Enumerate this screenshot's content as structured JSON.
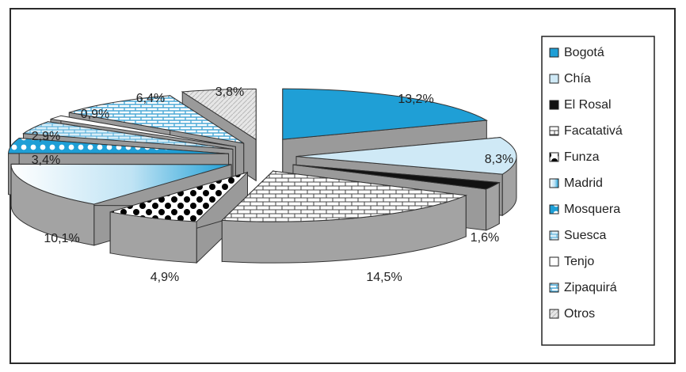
{
  "chart_data": {
    "type": "pie",
    "title": "",
    "legend_position": "right",
    "slices": [
      {
        "label": "Bogotá",
        "value": 13.2,
        "value_label": "13,2%",
        "color": "#1f9fd6",
        "pattern": "solid"
      },
      {
        "label": "Chía",
        "value": 8.3,
        "value_label": "8,3%",
        "color": "#cfe9f6",
        "pattern": "solid"
      },
      {
        "label": "El Rosal",
        "value": 1.6,
        "value_label": "1,6%",
        "color": "#111111",
        "pattern": "solid"
      },
      {
        "label": "Facatativá",
        "value": 14.5,
        "value_label": "14,5%",
        "color": "#ffffff",
        "pattern": "brick"
      },
      {
        "label": "Funza",
        "value": 4.9,
        "value_label": "4,9%",
        "color": "#111111",
        "pattern": "dots"
      },
      {
        "label": "Madrid",
        "value": 10.1,
        "value_label": "10,1%",
        "color": "#3fa8dd",
        "pattern": "gradient"
      },
      {
        "label": "Mosquera",
        "value": 3.4,
        "value_label": "3,4%",
        "color": "#1f9fd6",
        "pattern": "dots-white"
      },
      {
        "label": "Suesca",
        "value": 2.9,
        "value_label": "2,9%",
        "color": "#cfe9f6",
        "pattern": "light-brick"
      },
      {
        "label": "Tenjo",
        "value": 0.9,
        "value_label": "0,9%",
        "color": "#ffffff",
        "pattern": "solid"
      },
      {
        "label": "Zipaquirá",
        "value": 6.4,
        "value_label": "6,4%",
        "color": "#5cbde6",
        "pattern": "blue-brick"
      },
      {
        "label": "Otros",
        "value": 3.8,
        "value_label": "3,8%",
        "color": "#d4d4d4",
        "pattern": "gray"
      }
    ]
  }
}
